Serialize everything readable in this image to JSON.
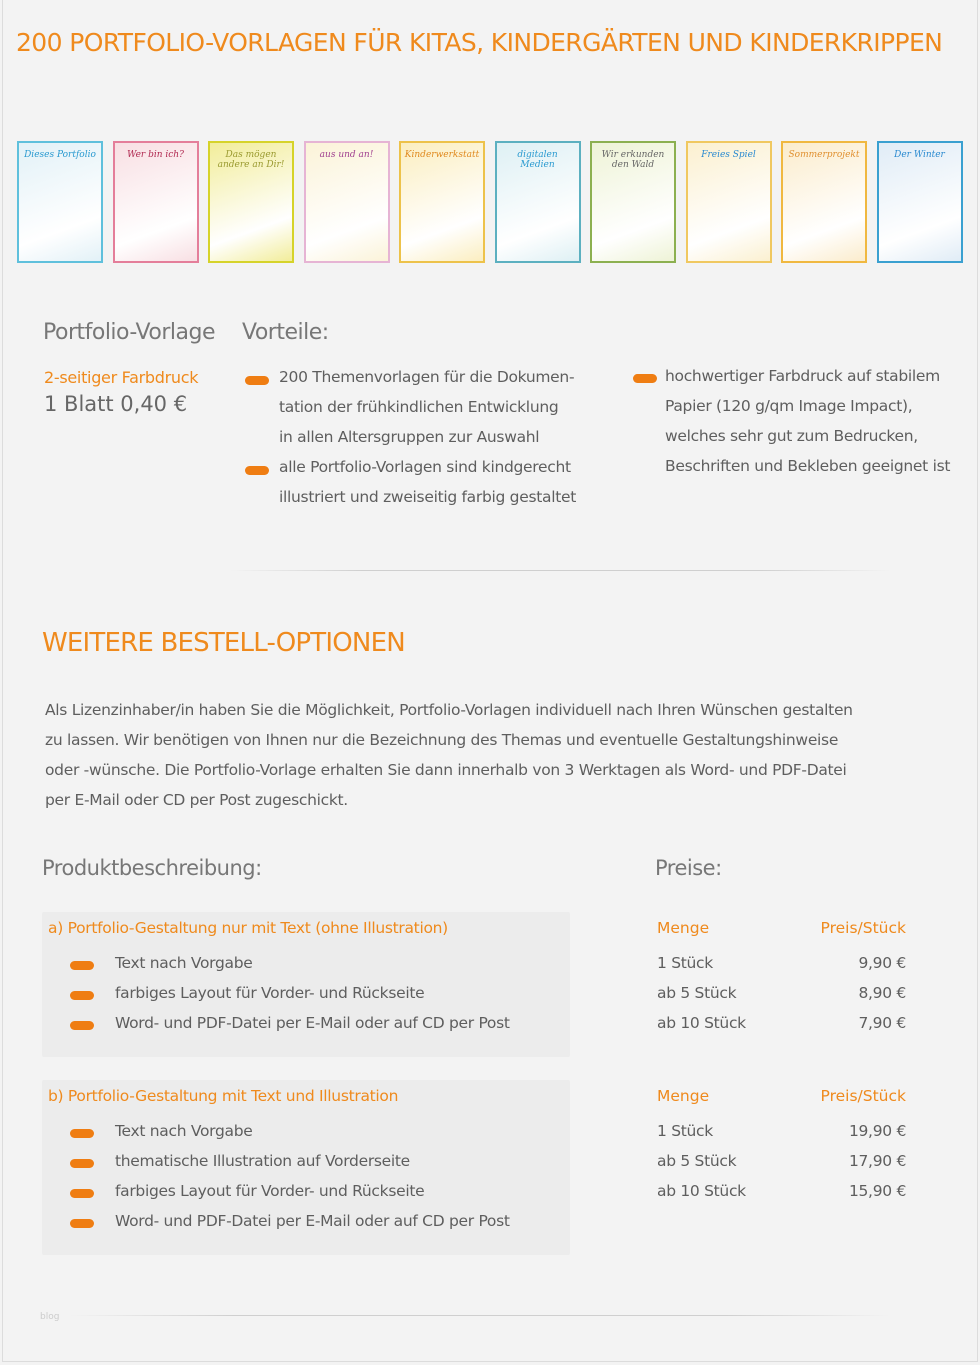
{
  "title": "200 PORTFOLIO-VORLAGEN FÜR KITAS, KINDERGÄRTEN UND KINDERKRIPPEN",
  "thumbnails": [
    {
      "label": "Dieses Portfolio",
      "border": "#5fc0dc",
      "bg": "#e2f1f7",
      "text": "#2a9ad0"
    },
    {
      "label": "Wer bin ich?",
      "border": "#e47e9a",
      "bg": "#f8dfe3",
      "text": "#b02850"
    },
    {
      "label": "Das mögen andere an Dir!",
      "border": "#d6d32a",
      "bg": "#f2ed9a",
      "text": "#9a9a30"
    },
    {
      "label": "aus und an!",
      "border": "#e6b4d4",
      "bg": "#fbf3d8",
      "text": "#a04090"
    },
    {
      "label": "Kinderwerkstatt",
      "border": "#edc24a",
      "bg": "#fbeec0",
      "text": "#e08a20"
    },
    {
      "label": "digitalen Medien",
      "border": "#5cb0c0",
      "bg": "#def0f4",
      "text": "#2a9ad0"
    },
    {
      "label": "Wir erkunden den Wald",
      "border": "#8cb050",
      "bg": "#eef3d6",
      "text": "#666"
    },
    {
      "label": "Freies Spiel",
      "border": "#f0c860",
      "bg": "#fbf0d0",
      "text": "#2a8ad0"
    },
    {
      "label": "Sommerprojekt",
      "border": "#f0b840",
      "bg": "#fbeccc",
      "text": "#e09030"
    },
    {
      "label": "Der Winter",
      "border": "#3aa0d0",
      "bg": "#e0ecf6",
      "text": "#2a8ad0"
    }
  ],
  "product": {
    "heading": "Portfolio-Vorlage",
    "subtitle": "2-seitiger Farbdruck",
    "price": "1 Blatt 0,40 €"
  },
  "advantages": {
    "heading": "Vorteile:",
    "left": [
      "200 Themenvorlagen für die Dokumen-",
      "tation der frühkindlichen Entwicklung",
      "in allen Altersgruppen zur Auswahl",
      "alle Portfolio-Vorlagen sind kindgerecht",
      "illustriert und zweiseitig farbig gestaltet"
    ],
    "right": [
      "hochwertiger Farbdruck auf stabilem",
      "Papier (120 g/qm Image Impact),",
      "welches sehr gut zum Bedrucken,",
      "Beschriften und Bekleben geeignet ist"
    ]
  },
  "options": {
    "heading": "WEITERE BESTELL-OPTIONEN",
    "paragraph": [
      "Als Lizenzinhaber/in haben Sie die Möglichkeit, Portfolio-Vorlagen individuell nach Ihren Wünschen gestalten",
      "zu lassen. Wir benötigen von Ihnen nur die Bezeichnung des Themas und eventuelle Gestaltungshinweise",
      "oder -wünsche. Die Portfolio-Vorlage erhalten Sie dann innerhalb von 3 Werktagen als Word- und PDF-Datei",
      "per E-Mail oder CD per Post zugeschickt."
    ]
  },
  "description_heading": "Produktbeschreibung:",
  "prices_heading": "Preise:",
  "packages": [
    {
      "title": "a) Portfolio-Gestaltung nur mit Text (ohne Illustration)",
      "items": [
        "Text nach Vorgabe",
        "farbiges Layout für Vorder- und Rückseite",
        "Word- und PDF-Datei per E-Mail oder auf CD per Post"
      ],
      "qty_header": "Menge",
      "price_header": "Preis/Stück",
      "rows": [
        {
          "qty": "1 Stück",
          "price": "9,90 €"
        },
        {
          "qty": "ab 5 Stück",
          "price": "8,90 €"
        },
        {
          "qty": "ab 10 Stück",
          "price": "7,90 €"
        }
      ]
    },
    {
      "title": "b) Portfolio-Gestaltung mit Text und Illustration",
      "items": [
        "Text nach Vorgabe",
        "thematische Illustration auf Vorderseite",
        "farbiges Layout für Vorder- und Rückseite",
        "Word- und PDF-Datei per E-Mail oder auf CD per Post"
      ],
      "qty_header": "Menge",
      "price_header": "Preis/Stück",
      "rows": [
        {
          "qty": "1 Stück",
          "price": "19,90 €"
        },
        {
          "qty": "ab 5 Stück",
          "price": "17,90 €"
        },
        {
          "qty": "ab 10 Stück",
          "price": "15,90 €"
        }
      ]
    }
  ],
  "watermark": "blog",
  "accent": "#ef8a1d"
}
